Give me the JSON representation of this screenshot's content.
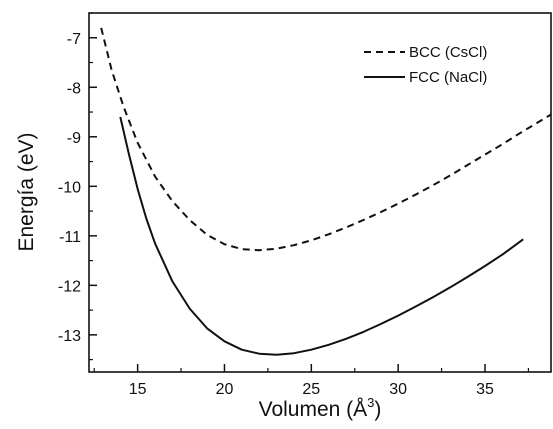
{
  "chart_data": {
    "type": "line",
    "xlabel": "Volumen (Å",
    "xlabel_superscript": "3",
    "xlabel_suffix": ")",
    "ylabel": "Energía (eV)",
    "xlim": [
      12.2,
      38.8
    ],
    "ylim": [
      -13.75,
      -6.5
    ],
    "x_ticks": [
      15,
      20,
      25,
      30,
      35
    ],
    "y_ticks": [
      -7,
      -8,
      -9,
      -10,
      -11,
      -12,
      -13
    ],
    "legend_position": "top-right",
    "series": [
      {
        "name": "BCC (CsCl)",
        "style": "dashed",
        "x": [
          12.9,
          13.5,
          14.2,
          15.0,
          16.0,
          17.0,
          18.0,
          19.0,
          20.0,
          21.0,
          22.0,
          23.0,
          24.0,
          25.0,
          26.0,
          27.0,
          28.0,
          29.0,
          30.0,
          31.0,
          32.0,
          33.0,
          34.0,
          35.0,
          36.0,
          37.0,
          38.0,
          38.8
        ],
        "y": [
          -6.8,
          -7.65,
          -8.4,
          -9.12,
          -9.8,
          -10.3,
          -10.68,
          -10.98,
          -11.17,
          -11.27,
          -11.29,
          -11.26,
          -11.19,
          -11.09,
          -10.97,
          -10.83,
          -10.68,
          -10.52,
          -10.35,
          -10.17,
          -9.98,
          -9.78,
          -9.57,
          -9.36,
          -9.15,
          -8.93,
          -8.72,
          -8.55
        ]
      },
      {
        "name": "FCC (NaCl)",
        "style": "solid",
        "x": [
          14.0,
          14.5,
          15.0,
          15.5,
          16.0,
          17.0,
          18.0,
          19.0,
          20.0,
          21.0,
          22.0,
          23.0,
          24.0,
          25.0,
          26.0,
          27.0,
          28.0,
          29.0,
          30.0,
          31.0,
          32.0,
          33.0,
          34.0,
          35.0,
          36.0,
          37.2
        ],
        "y": [
          -8.6,
          -9.35,
          -10.05,
          -10.65,
          -11.15,
          -11.92,
          -12.47,
          -12.87,
          -13.13,
          -13.3,
          -13.38,
          -13.4,
          -13.37,
          -13.3,
          -13.2,
          -13.08,
          -12.94,
          -12.78,
          -12.61,
          -12.43,
          -12.24,
          -12.04,
          -11.83,
          -11.61,
          -11.38,
          -11.07
        ]
      }
    ]
  }
}
